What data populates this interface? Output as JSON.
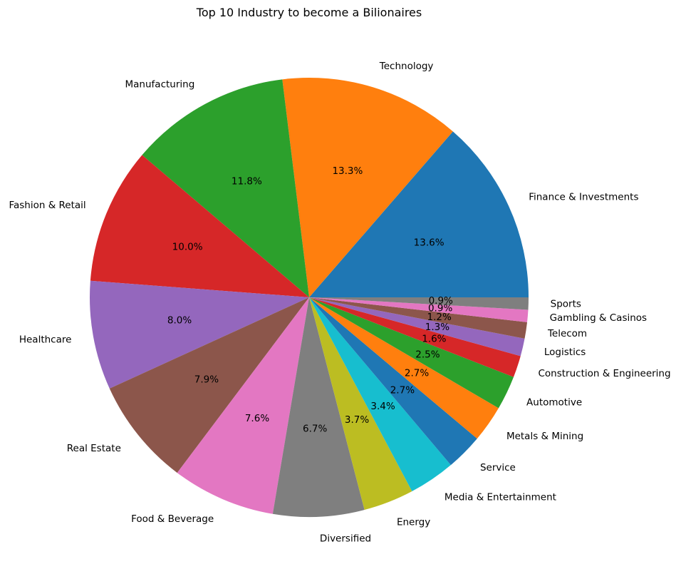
{
  "chart_data": {
    "type": "pie",
    "title": "Top 10 Industry to become a Bilionaires",
    "start_angle_deg": 0,
    "direction": "counterclockwise",
    "slices": [
      {
        "label": "Finance & Investments",
        "value": 13.6,
        "pct_label": "13.6%",
        "color": "#1f77b4"
      },
      {
        "label": "Technology",
        "value": 13.3,
        "pct_label": "13.3%",
        "color": "#ff7f0e"
      },
      {
        "label": "Manufacturing",
        "value": 11.8,
        "pct_label": "11.8%",
        "color": "#2ca02c"
      },
      {
        "label": "Fashion & Retail",
        "value": 10.0,
        "pct_label": "10.0%",
        "color": "#d62728"
      },
      {
        "label": "Healthcare",
        "value": 8.0,
        "pct_label": "8.0%",
        "color": "#9467bd"
      },
      {
        "label": "Real Estate",
        "value": 7.9,
        "pct_label": "7.9%",
        "color": "#8c564b"
      },
      {
        "label": "Food & Beverage",
        "value": 7.6,
        "pct_label": "7.6%",
        "color": "#e377c2"
      },
      {
        "label": "Diversified",
        "value": 6.7,
        "pct_label": "6.7%",
        "color": "#7f7f7f"
      },
      {
        "label": "Energy",
        "value": 3.7,
        "pct_label": "3.7%",
        "color": "#bcbd22"
      },
      {
        "label": "Media & Entertainment",
        "value": 3.4,
        "pct_label": "3.4%",
        "color": "#17becf"
      },
      {
        "label": "Service",
        "value": 2.7,
        "pct_label": "2.7%",
        "color": "#1f77b4"
      },
      {
        "label": "Metals & Mining",
        "value": 2.7,
        "pct_label": "2.7%",
        "color": "#ff7f0e"
      },
      {
        "label": "Automotive",
        "value": 2.5,
        "pct_label": "2.5%",
        "color": "#2ca02c"
      },
      {
        "label": "Construction & Engineering",
        "value": 1.6,
        "pct_label": "1.6%",
        "color": "#d62728"
      },
      {
        "label": "Logistics",
        "value": 1.3,
        "pct_label": "1.3%",
        "color": "#9467bd"
      },
      {
        "label": "Telecom",
        "value": 1.2,
        "pct_label": "1.2%",
        "color": "#8c564b"
      },
      {
        "label": "Gambling & Casinos",
        "value": 0.9,
        "pct_label": "0.9%",
        "color": "#e377c2"
      },
      {
        "label": "Sports",
        "value": 0.9,
        "pct_label": "0.9%",
        "color": "#7f7f7f"
      }
    ]
  }
}
